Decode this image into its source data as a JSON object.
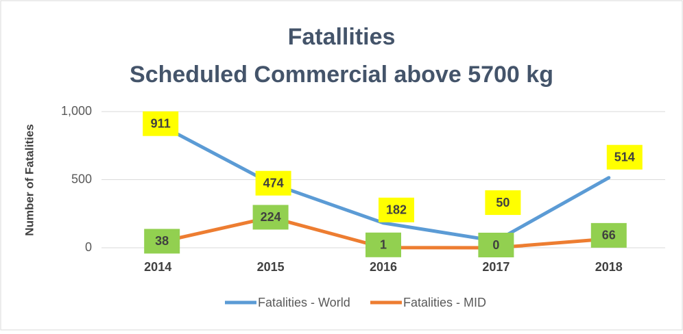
{
  "chart_data": {
    "type": "line",
    "title": "Fatallities",
    "subtitle": "Scheduled Commercial above 5700 kg",
    "y_label": "Number of Fatalities",
    "categories": [
      "2014",
      "2015",
      "2016",
      "2017",
      "2018"
    ],
    "series": [
      {
        "name": "Fatalities - World",
        "color": "#5b9bd5",
        "label_color": "#ffff00",
        "values": [
          911,
          474,
          182,
          50,
          514
        ]
      },
      {
        "name": "Fatalities - MID",
        "color": "#ed7d31",
        "label_color": "#92d050",
        "values": [
          38,
          224,
          1,
          0,
          66
        ]
      }
    ],
    "ylim": [
      0,
      1000
    ],
    "yticks": [
      0,
      500,
      {
        "value": 1000,
        "label": "1,000"
      }
    ],
    "grid": true
  }
}
